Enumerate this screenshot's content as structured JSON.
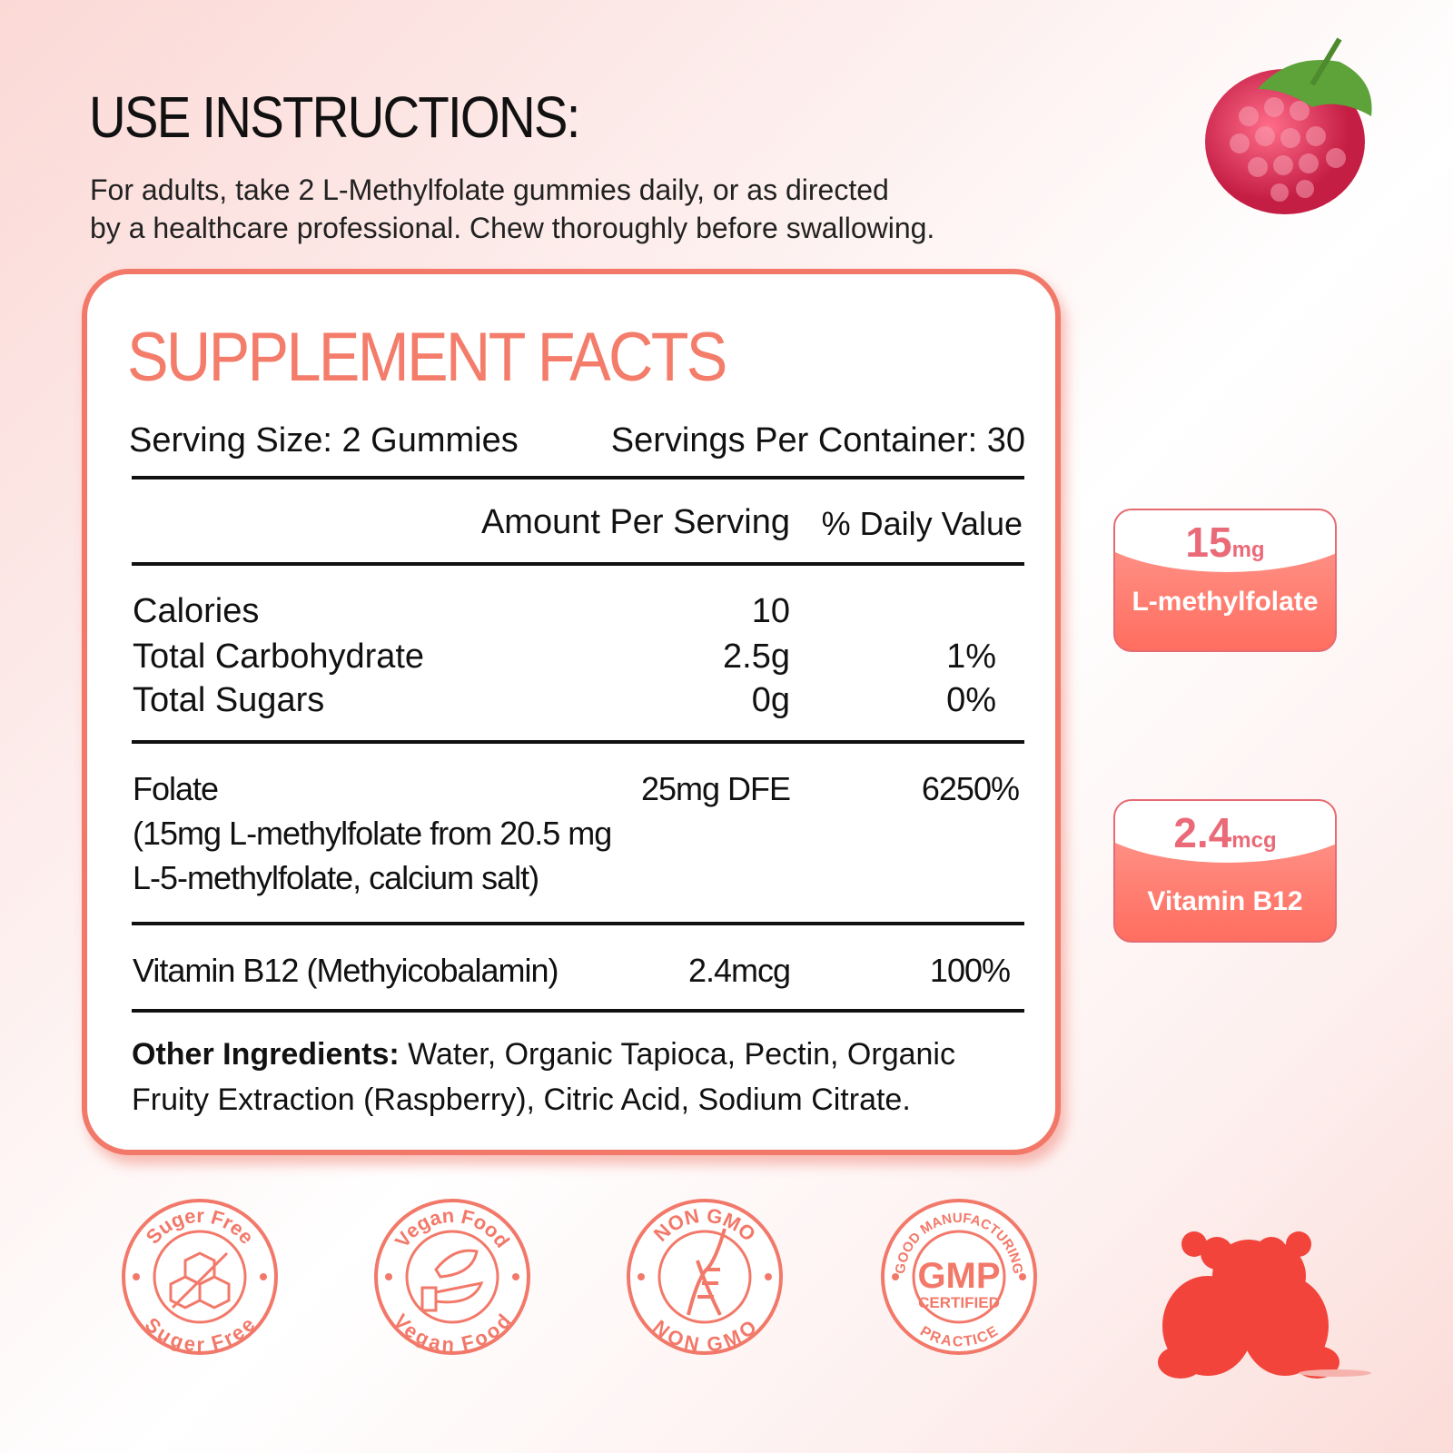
{
  "header": {
    "title": "USE INSTRUCTIONS:",
    "instructions_line1": "For adults, take 2 L-Methylfolate gummies daily, or as directed",
    "instructions_line2": "by a healthcare professional. Chew thoroughly before swallowing."
  },
  "facts": {
    "title": "SUPPLEMENT FACTS",
    "serving_size": "Serving Size:  2 Gummies",
    "servings_per_container": "Servings Per Container: 30",
    "col_amount": "Amount Per Serving",
    "col_dv": "% Daily Value",
    "rows": [
      {
        "name": "Calories",
        "amount": "10",
        "dv": ""
      },
      {
        "name": "Total Carbohydrate",
        "amount": "2.5g",
        "dv": "1%"
      },
      {
        "name": "Total Sugars",
        "amount": "0g",
        "dv": "0%"
      }
    ],
    "folate": {
      "name": "Folate",
      "detail1": "(15mg L-methylfolate from 20.5 mg",
      "detail2": "L-5-methylfolate, calcium salt)",
      "amount": "25mg DFE",
      "dv": "6250%"
    },
    "b12": {
      "name": "Vitamin B12 (Methyicobalamin)",
      "amount": "2.4mcg",
      "dv": "100%"
    },
    "other_label": "Other Ingredients:",
    "other_text1": " Water, Organic Tapioca, Pectin, Organic",
    "other_text2": "Fruity Extraction (Raspberry), Citric Acid, Sodium Citrate."
  },
  "callouts": [
    {
      "value": "15",
      "unit": "mg",
      "label": "L-methylfolate"
    },
    {
      "value": "2.4",
      "unit": "mcg",
      "label": "Vitamin B12"
    }
  ],
  "badges": [
    {
      "top": "Suger Free",
      "bottom": "Suger Free",
      "icon": "sugar-cube-crossed-icon"
    },
    {
      "top": "Vegan Food",
      "bottom": "Vegan Food",
      "icon": "leaf-hand-icon"
    },
    {
      "top": "NON GMO",
      "bottom": "NON GMO",
      "icon": "dna-icon"
    },
    {
      "top": "GOOD MANUFACTURING",
      "bottom": "PRACTICE",
      "center": "GMP",
      "sub": "CERTIFIED",
      "icon": "gmp-icon"
    }
  ],
  "colors": {
    "accent": "#f2796a",
    "callout_number": "#ea6a78"
  }
}
